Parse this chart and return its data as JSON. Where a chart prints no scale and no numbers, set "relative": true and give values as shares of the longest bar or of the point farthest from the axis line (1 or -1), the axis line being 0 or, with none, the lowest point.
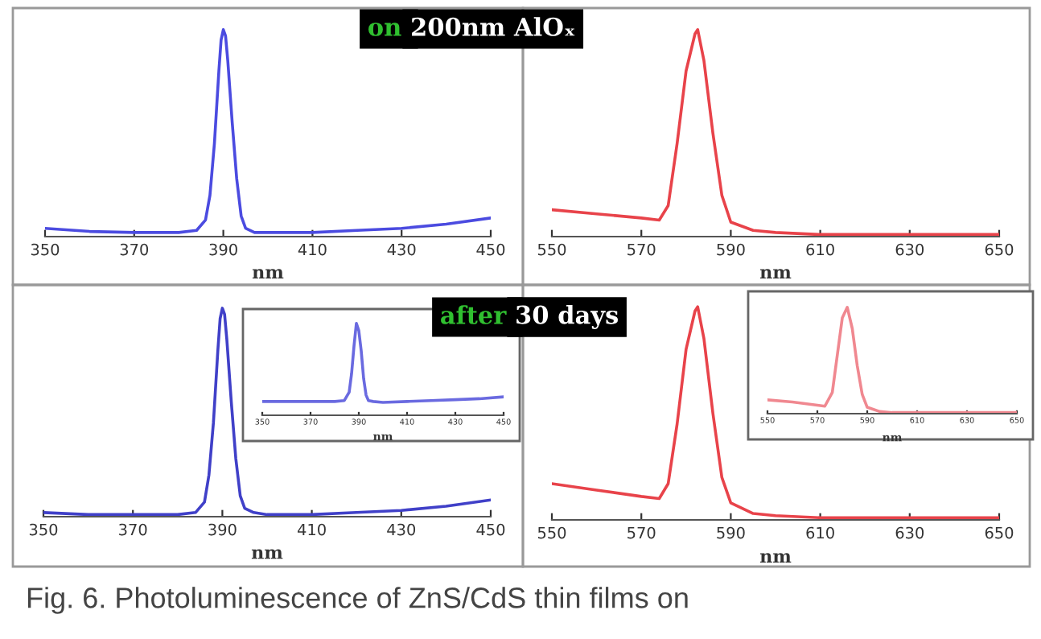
{
  "chart_data": [
    {
      "type": "line",
      "relative": true,
      "title": "on 200nm AlOₓ",
      "xlabel": "nm",
      "xlim": [
        350,
        450
      ],
      "xticks": [
        350,
        370,
        390,
        410,
        430,
        450
      ],
      "annotations": [
        "Fig. 6. Photoluminescence of ZnS/CdS thin films on"
      ],
      "series": [
        {
          "color": "#4b4be0",
          "x": [
            350,
            360,
            370,
            380,
            384,
            386,
            387,
            388,
            389,
            389.5,
            390,
            390.5,
            391,
            392,
            393,
            394,
            395,
            397,
            400,
            410,
            420,
            430,
            440,
            450
          ],
          "values": [
            0.04,
            0.025,
            0.02,
            0.02,
            0.03,
            0.08,
            0.2,
            0.45,
            0.8,
            0.95,
            1.0,
            0.97,
            0.85,
            0.55,
            0.28,
            0.1,
            0.04,
            0.02,
            0.02,
            0.02,
            0.03,
            0.04,
            0.06,
            0.09
          ]
        }
      ]
    },
    {
      "type": "line",
      "relative": true,
      "xlabel": "nm",
      "xlim": [
        550,
        650
      ],
      "xticks": [
        550,
        570,
        590,
        610,
        630,
        650
      ],
      "series": [
        {
          "color": "#e8434a",
          "x": [
            550,
            560,
            570,
            574,
            576,
            578,
            580,
            582,
            582.6,
            584,
            586,
            588,
            590,
            595,
            600,
            610,
            620,
            630,
            650
          ],
          "values": [
            0.13,
            0.11,
            0.09,
            0.08,
            0.15,
            0.45,
            0.8,
            0.98,
            1.0,
            0.85,
            0.5,
            0.2,
            0.07,
            0.03,
            0.02,
            0.01,
            0.01,
            0.01,
            0.01
          ]
        }
      ]
    },
    {
      "type": "line",
      "relative": true,
      "title": "after 30 days",
      "xlabel": "nm",
      "xlim": [
        350,
        450
      ],
      "xticks": [
        350,
        370,
        390,
        410,
        430,
        450
      ],
      "series": [
        {
          "color": "#4040c8",
          "x": [
            350,
            360,
            370,
            380,
            384,
            386,
            387,
            388,
            389,
            389.5,
            390,
            390.5,
            391,
            392,
            393,
            394,
            395,
            397,
            400,
            410,
            420,
            430,
            440,
            450
          ],
          "values": [
            0.02,
            0.01,
            0.01,
            0.01,
            0.02,
            0.07,
            0.2,
            0.45,
            0.8,
            0.95,
            1.0,
            0.97,
            0.85,
            0.55,
            0.28,
            0.1,
            0.04,
            0.02,
            0.01,
            0.01,
            0.02,
            0.03,
            0.05,
            0.08
          ]
        }
      ]
    },
    {
      "type": "line",
      "relative": true,
      "xlabel": "nm",
      "xlim": [
        350,
        450
      ],
      "xticks": [
        350,
        370,
        390,
        410,
        430,
        450
      ],
      "series": [
        {
          "color": "#6a6ae0",
          "x": [
            350,
            360,
            370,
            380,
            384,
            386,
            387,
            388,
            389,
            390,
            391,
            392,
            393,
            394,
            396,
            400,
            410,
            420,
            430,
            440,
            450
          ],
          "values": [
            0.15,
            0.15,
            0.15,
            0.15,
            0.16,
            0.25,
            0.45,
            0.75,
            1.0,
            0.92,
            0.7,
            0.4,
            0.22,
            0.16,
            0.15,
            0.14,
            0.15,
            0.16,
            0.17,
            0.18,
            0.2
          ]
        }
      ]
    },
    {
      "type": "line",
      "relative": true,
      "xlabel": "nm",
      "xlim": [
        550,
        650
      ],
      "xticks": [
        550,
        570,
        590,
        610,
        630,
        650
      ],
      "series": [
        {
          "color": "#e8434a",
          "x": [
            550,
            560,
            570,
            574,
            576,
            578,
            580,
            582,
            582.6,
            584,
            586,
            588,
            590,
            595,
            600,
            610,
            620,
            630,
            650
          ],
          "values": [
            0.17,
            0.14,
            0.11,
            0.1,
            0.17,
            0.45,
            0.8,
            0.98,
            1.0,
            0.85,
            0.5,
            0.2,
            0.08,
            0.03,
            0.02,
            0.01,
            0.01,
            0.01,
            0.01
          ]
        }
      ]
    },
    {
      "type": "line",
      "relative": true,
      "xlabel": "nm",
      "xlim": [
        550,
        650
      ],
      "xticks": [
        550,
        570,
        590,
        610,
        630,
        650
      ],
      "series": [
        {
          "color": "#f08890",
          "x": [
            550,
            560,
            570,
            573,
            576,
            578,
            580,
            582,
            584,
            586,
            588,
            590,
            595,
            600,
            610,
            630,
            650
          ],
          "values": [
            0.13,
            0.11,
            0.08,
            0.07,
            0.2,
            0.55,
            0.9,
            1.0,
            0.8,
            0.45,
            0.18,
            0.06,
            0.02,
            0.01,
            0.01,
            0.01,
            0.01
          ]
        }
      ]
    }
  ]
}
